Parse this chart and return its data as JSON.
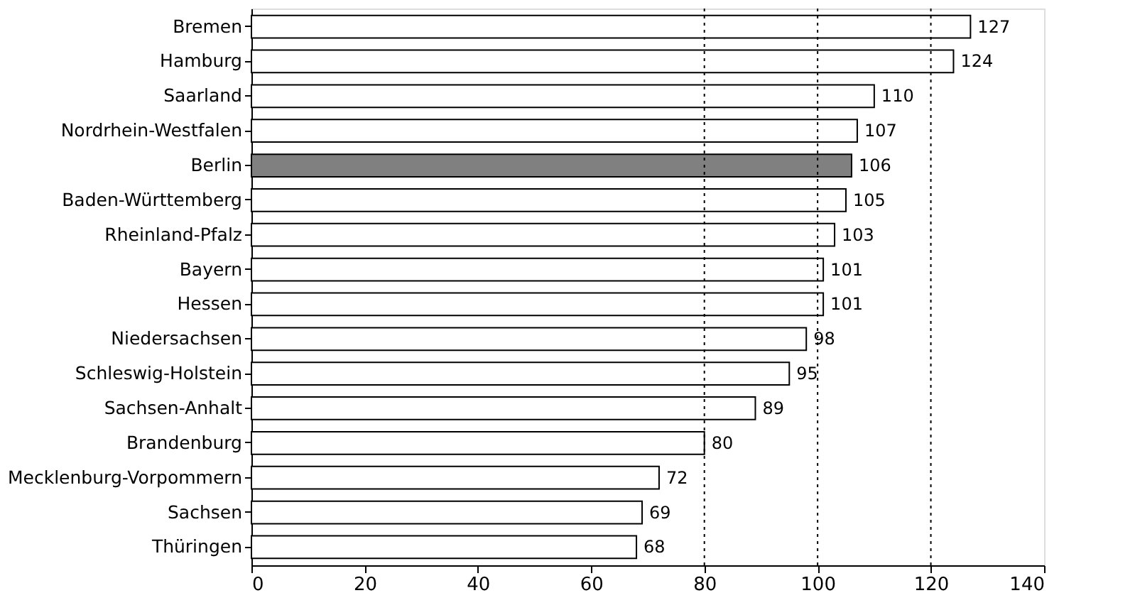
{
  "chart_data": {
    "type": "bar",
    "orientation": "horizontal",
    "categories": [
      "Bremen",
      "Hamburg",
      "Saarland",
      "Nordrhein-Westfalen",
      "Berlin",
      "Baden-Württemberg",
      "Rheinland-Pfalz",
      "Bayern",
      "Hessen",
      "Niedersachsen",
      "Schleswig-Holstein",
      "Sachsen-Anhalt",
      "Brandenburg",
      "Mecklenburg-Vorpommern",
      "Sachsen",
      "Thüringen"
    ],
    "values": [
      127,
      124,
      110,
      107,
      106,
      105,
      103,
      101,
      101,
      98,
      95,
      89,
      80,
      72,
      69,
      68
    ],
    "colors": [
      "#ffffff",
      "#ffffff",
      "#ffffff",
      "#ffffff",
      "#808080",
      "#ffffff",
      "#ffffff",
      "#ffffff",
      "#ffffff",
      "#ffffff",
      "#ffffff",
      "#ffffff",
      "#ffffff",
      "#ffffff",
      "#ffffff",
      "#ffffff"
    ],
    "xlim": [
      0,
      140
    ],
    "xticks": [
      0,
      20,
      40,
      60,
      80,
      100,
      120,
      140
    ],
    "ref_lines": [
      {
        "axis": "x",
        "value": 80,
        "line_style": "dotted"
      },
      {
        "axis": "x",
        "value": 100,
        "line_style": "dotted"
      },
      {
        "axis": "x",
        "value": 120,
        "line_style": "dotted"
      }
    ],
    "data_labels": true
  }
}
